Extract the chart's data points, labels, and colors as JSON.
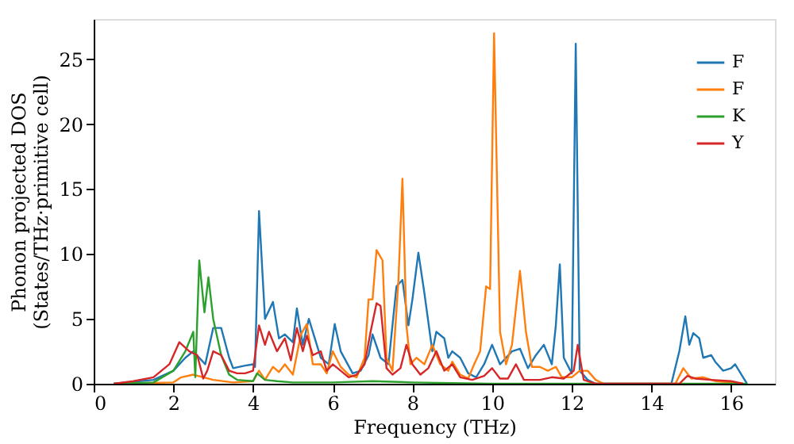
{
  "chart_data": {
    "type": "line",
    "xlabel": "Frequency (THz)",
    "ylabel": "Phonon projected DOS\n(States/THz·primitive cell)",
    "xlim": [
      0,
      17.1
    ],
    "ylim": [
      0,
      28.1
    ],
    "xticks": [
      0,
      2,
      4,
      6,
      8,
      10,
      12,
      14,
      16
    ],
    "yticks": [
      0,
      5,
      10,
      15,
      20,
      25
    ],
    "grid": false,
    "legend": "top right",
    "line_style": "solid",
    "marker": "none",
    "series": [
      {
        "name": "F",
        "color": "#1f77b4",
        "x": [
          0.5,
          1.5,
          2.0,
          2.3,
          2.5,
          2.8,
          3.0,
          3.2,
          3.4,
          3.5,
          3.8,
          4.0,
          4.05,
          4.15,
          4.3,
          4.5,
          4.65,
          4.8,
          5.0,
          5.1,
          5.25,
          5.4,
          5.55,
          5.7,
          5.9,
          6.05,
          6.2,
          6.5,
          6.7,
          6.9,
          7.0,
          7.2,
          7.4,
          7.6,
          7.75,
          7.9,
          8.0,
          8.15,
          8.3,
          8.5,
          8.6,
          8.8,
          8.9,
          9.0,
          9.2,
          9.4,
          9.6,
          9.8,
          10.0,
          10.2,
          10.5,
          10.7,
          10.9,
          11.1,
          11.3,
          11.5,
          11.6,
          11.7,
          11.8,
          12.0,
          12.1,
          12.2,
          12.4,
          12.6,
          14.5,
          14.7,
          14.85,
          14.95,
          15.05,
          15.2,
          15.3,
          15.5,
          15.6,
          15.8,
          16.0,
          16.1,
          16.3,
          16.4
        ],
        "values": [
          0,
          0.3,
          1,
          2,
          2.5,
          1.5,
          4.3,
          4.3,
          2,
          1.2,
          1.4,
          1.5,
          1.3,
          13.3,
          5,
          6.3,
          3.5,
          3.8,
          3.2,
          5.8,
          3,
          5.0,
          3.5,
          2.0,
          1.5,
          4.6,
          2.5,
          0.8,
          1,
          2.2,
          3.8,
          2,
          1.5,
          7.5,
          8,
          4.5,
          6.5,
          10.1,
          7,
          2.5,
          4,
          3.5,
          2,
          2.5,
          2,
          0.8,
          0.5,
          1.5,
          3,
          1.5,
          2.5,
          2.7,
          1.2,
          2.2,
          3,
          1.5,
          4.5,
          9.2,
          2,
          0.8,
          26.2,
          1,
          0.3,
          0,
          0,
          2.5,
          5.2,
          3,
          3.9,
          3.5,
          2,
          2.2,
          1.7,
          1.0,
          1.2,
          1.5,
          0.5,
          0
        ]
      },
      {
        "name": "F",
        "color": "#ff7f0e",
        "x": [
          0.5,
          2.0,
          2.2,
          2.5,
          3.0,
          3.5,
          4.0,
          4.15,
          4.3,
          4.5,
          4.65,
          4.8,
          5.0,
          5.2,
          5.35,
          5.5,
          5.7,
          5.85,
          6.0,
          6.2,
          6.4,
          6.6,
          6.8,
          6.9,
          7.0,
          7.1,
          7.25,
          7.35,
          7.5,
          7.65,
          7.75,
          7.85,
          7.95,
          8.1,
          8.3,
          8.5,
          8.7,
          8.9,
          9.0,
          9.2,
          9.4,
          9.55,
          9.7,
          9.85,
          9.95,
          10.05,
          10.2,
          10.35,
          10.5,
          10.7,
          10.85,
          11.0,
          11.2,
          11.4,
          11.6,
          11.75,
          12.0,
          12.2,
          12.4,
          12.6,
          12.8,
          14.6,
          14.8,
          15.0,
          15.3,
          15.6,
          16.0,
          16.3
        ],
        "values": [
          0,
          0.1,
          0.5,
          0.7,
          0.3,
          0.1,
          0.2,
          1.0,
          0.3,
          1.3,
          0.9,
          1.5,
          0.7,
          3.8,
          4.6,
          1.5,
          1.5,
          0.8,
          2.5,
          1.3,
          0.7,
          0.5,
          2.0,
          6.5,
          6.5,
          10.3,
          9.5,
          2,
          1,
          8,
          15.8,
          4.5,
          1.5,
          2,
          1.5,
          3,
          1.5,
          1.0,
          1.7,
          0.7,
          0.4,
          1.5,
          2.5,
          7.5,
          7.3,
          27.0,
          4,
          1.5,
          3,
          8.7,
          4,
          1.3,
          1.3,
          1,
          1.3,
          0.5,
          0.5,
          1,
          1,
          0.3,
          0,
          0,
          1.2,
          0.4,
          0.5,
          0.2,
          0.1,
          0
        ]
      },
      {
        "name": "K",
        "color": "#2ca02c",
        "x": [
          0.5,
          1.5,
          2.0,
          2.3,
          2.5,
          2.55,
          2.65,
          2.78,
          2.88,
          3.0,
          3.2,
          3.4,
          3.6,
          4.0,
          4.1,
          4.3,
          4.6,
          5.0,
          6.0,
          7.0,
          8.0,
          10.0,
          16.4
        ],
        "values": [
          0,
          0.1,
          1,
          2.5,
          4,
          0.5,
          9.5,
          5.5,
          8.2,
          5,
          2.2,
          0.7,
          0.3,
          0.2,
          0.8,
          0.3,
          0.2,
          0.1,
          0.1,
          0.2,
          0.1,
          0,
          0
        ]
      },
      {
        "name": "Y",
        "color": "#d62728",
        "x": [
          0.5,
          1.0,
          1.5,
          1.9,
          2.15,
          2.4,
          2.6,
          2.75,
          2.85,
          3.0,
          3.2,
          3.4,
          3.6,
          3.8,
          4.0,
          4.15,
          4.3,
          4.4,
          4.6,
          4.8,
          4.95,
          5.1,
          5.25,
          5.35,
          5.5,
          5.7,
          5.85,
          6.0,
          6.2,
          6.4,
          6.6,
          6.8,
          6.95,
          7.1,
          7.2,
          7.35,
          7.5,
          7.7,
          7.85,
          8.0,
          8.2,
          8.4,
          8.6,
          8.8,
          9.0,
          9.2,
          9.5,
          9.8,
          10.0,
          10.2,
          10.4,
          10.6,
          10.8,
          11.2,
          11.5,
          11.8,
          12.05,
          12.15,
          12.3,
          12.6,
          14.7,
          14.9,
          15.1,
          15.5,
          16.0,
          16.3
        ],
        "values": [
          0,
          0.2,
          0.5,
          1.5,
          3.2,
          2.5,
          2.2,
          0.4,
          1.0,
          2.5,
          2.2,
          1.0,
          0.8,
          0.8,
          1.0,
          4.5,
          3,
          4.0,
          2.5,
          3.5,
          1.8,
          4.3,
          2.5,
          3.7,
          2.2,
          2.5,
          1,
          1.5,
          1.0,
          0.5,
          0.7,
          1.5,
          4,
          6.2,
          6.0,
          1.2,
          0.7,
          1.2,
          3,
          1.5,
          0.7,
          1.2,
          2.5,
          1,
          1.5,
          0.5,
          0.3,
          0.6,
          1.2,
          0.4,
          0.4,
          1.5,
          0.3,
          0.3,
          0.5,
          0.4,
          1.0,
          3.0,
          0.3,
          0,
          0,
          0.6,
          0.4,
          0.3,
          0.2,
          0
        ]
      }
    ]
  }
}
